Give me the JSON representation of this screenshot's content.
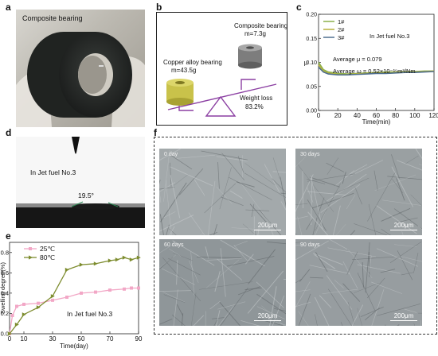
{
  "panels": {
    "a": {
      "letter": "a",
      "label": "Composite bearing"
    },
    "b": {
      "letter": "b",
      "composite_title": "Composite bearing",
      "composite_mass": "m=7.3g",
      "copper_title": "Copper alloy bearing",
      "copper_mass": "m=43.5g",
      "loss_title": "Weight loss",
      "loss_value": "83.2%",
      "colors": {
        "copper": "#c9c24a",
        "composite": "#7d7d7d",
        "lever": "#8b3fa2"
      }
    },
    "c": {
      "letter": "c",
      "legend": [
        "1#",
        "2#",
        "3#"
      ],
      "note": "In Jet fuel No.3",
      "avg_mu": "Average μ = 0.079",
      "avg_omega": "Average ω = 0.52×10⁻¹⁵m³/Nm",
      "xlabel": "Time(min)",
      "ylabel": "μ",
      "xticks": [
        "0",
        "20",
        "40",
        "60",
        "80",
        "100",
        "120"
      ],
      "yticks": [
        "0.00",
        "0.05",
        "0.10",
        "0.15",
        "0.20"
      ],
      "colors": [
        "#8bb04a",
        "#b7b13a",
        "#4f6f8f"
      ]
    },
    "d": {
      "letter": "d",
      "note": "In Jet fuel No.3",
      "angle": "19.5°"
    },
    "e": {
      "letter": "e",
      "legend": [
        "25℃",
        "80℃"
      ],
      "note": "In Jet fuel No.3",
      "xlabel": "Time(day)",
      "ylabel": "Swelling degree(%)",
      "xticks": [
        "0",
        "10",
        "30",
        "50",
        "70",
        "90"
      ],
      "yticks": [
        "0.0",
        "0.2",
        "0.4",
        "0.6",
        "0.8"
      ],
      "colors": [
        "#f2a7c6",
        "#7d8c2e"
      ]
    },
    "f": {
      "letter": "f",
      "days": [
        "0 day",
        "30 days",
        "60 days",
        "90 days"
      ],
      "scale": "200μm"
    }
  },
  "chart_data": [
    {
      "type": "line",
      "panel": "c",
      "xlabel": "Time(min)",
      "ylabel": "μ",
      "xlim": [
        0,
        120
      ],
      "ylim": [
        0,
        0.2
      ],
      "series": [
        {
          "name": "1#",
          "x": [
            0,
            5,
            10,
            20,
            30,
            40,
            50,
            60,
            70,
            80,
            90,
            100,
            110,
            120
          ],
          "values": [
            0.1,
            0.085,
            0.08,
            0.077,
            0.076,
            0.077,
            0.078,
            0.079,
            0.08,
            0.08,
            0.081,
            0.081,
            0.082,
            0.082
          ]
        },
        {
          "name": "2#",
          "x": [
            0,
            5,
            10,
            20,
            30,
            40,
            50,
            60,
            70,
            80,
            90,
            100,
            110,
            120
          ],
          "values": [
            0.095,
            0.082,
            0.078,
            0.075,
            0.075,
            0.076,
            0.077,
            0.078,
            0.078,
            0.079,
            0.08,
            0.08,
            0.081,
            0.082
          ]
        },
        {
          "name": "3#",
          "x": [
            0,
            5,
            10,
            20,
            30,
            40,
            50,
            60,
            70,
            80,
            90,
            100,
            110,
            120
          ],
          "values": [
            0.09,
            0.08,
            0.076,
            0.074,
            0.074,
            0.075,
            0.076,
            0.077,
            0.077,
            0.078,
            0.079,
            0.079,
            0.08,
            0.081
          ]
        }
      ]
    },
    {
      "type": "line",
      "panel": "e",
      "xlabel": "Time(day)",
      "ylabel": "Swelling degree(%)",
      "xlim": [
        0,
        90
      ],
      "ylim": [
        0,
        0.9
      ],
      "series": [
        {
          "name": "25℃",
          "x": [
            0,
            2,
            5,
            10,
            20,
            30,
            40,
            50,
            60,
            70,
            80,
            85,
            90
          ],
          "values": [
            0.0,
            0.18,
            0.27,
            0.29,
            0.3,
            0.33,
            0.36,
            0.4,
            0.41,
            0.43,
            0.44,
            0.45,
            0.45
          ]
        },
        {
          "name": "80℃",
          "x": [
            0,
            5,
            10,
            20,
            30,
            40,
            50,
            60,
            70,
            75,
            80,
            85,
            90
          ],
          "values": [
            0.0,
            0.09,
            0.19,
            0.26,
            0.37,
            0.63,
            0.68,
            0.69,
            0.72,
            0.73,
            0.75,
            0.73,
            0.75
          ]
        }
      ]
    }
  ]
}
